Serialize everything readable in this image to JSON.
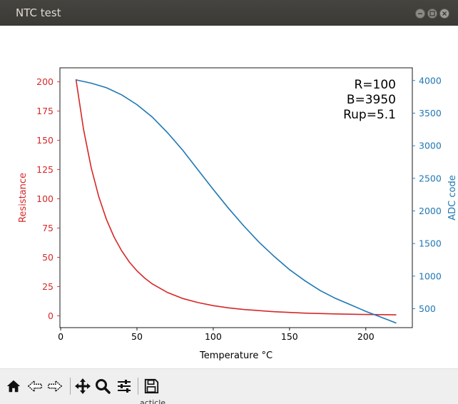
{
  "window": {
    "title": "NTC test"
  },
  "colors": {
    "resistance": "#d62728",
    "adc": "#1f77b4"
  },
  "annotation": {
    "lines": [
      "R=100",
      "B=3950",
      "Rup=5.1"
    ]
  },
  "toolbar": {
    "icons": [
      "home-icon",
      "back-icon",
      "forward-icon",
      "pan-icon",
      "zoom-icon",
      "configure-subplots-icon",
      "save-icon"
    ]
  },
  "peek_text": "acticle",
  "chart_data": {
    "type": "line",
    "title": "",
    "xlabel": "Temperature °C",
    "xlim": [
      -0.5,
      230.5
    ],
    "xticks": [
      0,
      50,
      100,
      150,
      200
    ],
    "y_left": {
      "label": "Resistance",
      "lim": [
        -10.1,
        212.0
      ],
      "ticks": [
        0,
        25,
        50,
        75,
        100,
        125,
        150,
        175,
        200
      ]
    },
    "y_right": {
      "label": "ADC code",
      "lim": [
        210,
        4195
      ],
      "ticks": [
        500,
        1000,
        1500,
        2000,
        2500,
        3000,
        3500,
        4000
      ]
    },
    "series": [
      {
        "name": "Resistance",
        "axis": "left",
        "x": [
          10,
          15,
          20,
          25,
          30,
          35,
          40,
          45,
          50,
          55,
          60,
          70,
          80,
          90,
          100,
          110,
          120,
          140,
          160,
          180,
          200,
          220
        ],
        "values": [
          202.2,
          159.4,
          126.7,
          101.7,
          82.4,
          67.3,
          55.5,
          46.0,
          38.4,
          32.3,
          27.3,
          19.9,
          14.8,
          11.3,
          8.7,
          6.8,
          5.4,
          3.5,
          2.3,
          1.6,
          1.1,
          0.8
        ]
      },
      {
        "name": "ADC code",
        "axis": "right",
        "x": [
          10,
          20,
          30,
          40,
          50,
          60,
          70,
          80,
          90,
          100,
          110,
          120,
          130,
          140,
          150,
          160,
          170,
          180,
          190,
          200,
          210,
          220
        ],
        "values": [
          4010,
          3960,
          3890,
          3780,
          3630,
          3440,
          3200,
          2930,
          2630,
          2330,
          2040,
          1770,
          1520,
          1300,
          1100,
          930,
          780,
          660,
          560,
          460,
          370,
          280
        ]
      }
    ]
  }
}
